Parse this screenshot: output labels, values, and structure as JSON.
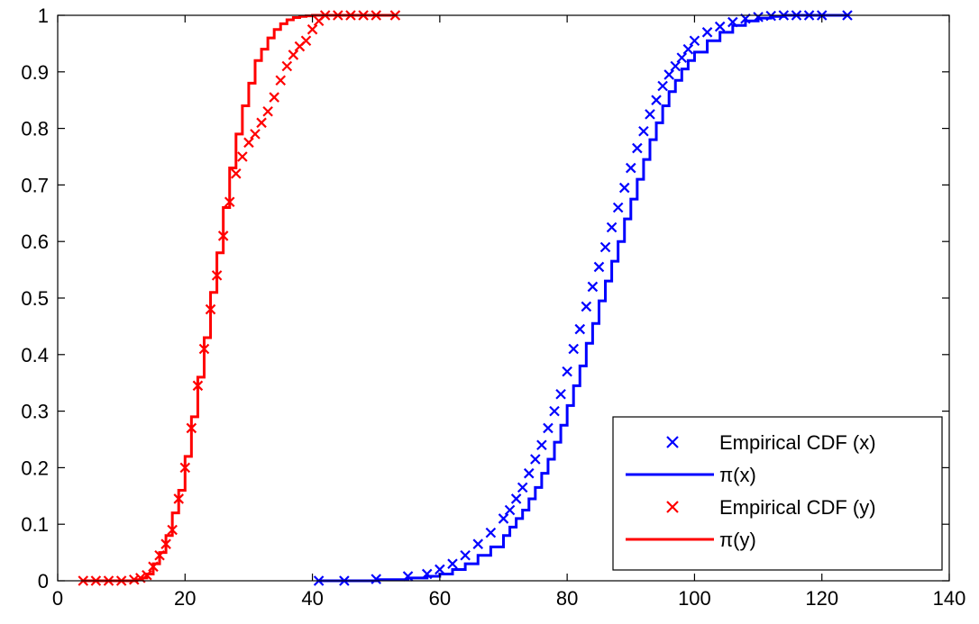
{
  "chart_data": {
    "type": "line",
    "xlim": [
      0,
      140
    ],
    "ylim": [
      0,
      1
    ],
    "x_ticks": [
      "0",
      "20",
      "40",
      "60",
      "80",
      "100",
      "120",
      "140"
    ],
    "y_ticks": [
      "0",
      "0.1",
      "0.2",
      "0.3",
      "0.4",
      "0.5",
      "0.6",
      "0.7",
      "0.8",
      "0.9",
      "1"
    ],
    "grid": false,
    "legend_position": "bottom-right",
    "series": [
      {
        "name": "Empirical CDF (x)",
        "kind": "markers",
        "marker": "x",
        "color": "#0000ff",
        "x": [
          41,
          45,
          50,
          55,
          58,
          60,
          62,
          64,
          66,
          68,
          70,
          71,
          72,
          73,
          74,
          75,
          76,
          77,
          78,
          79,
          80,
          81,
          82,
          83,
          84,
          85,
          86,
          87,
          88,
          89,
          90,
          91,
          92,
          93,
          94,
          95,
          96,
          97,
          98,
          99,
          100,
          102,
          104,
          106,
          108,
          110,
          112,
          114,
          116,
          118,
          120,
          124
        ],
        "y": [
          0,
          0,
          0.003,
          0.008,
          0.012,
          0.02,
          0.03,
          0.045,
          0.065,
          0.085,
          0.11,
          0.125,
          0.145,
          0.165,
          0.19,
          0.215,
          0.24,
          0.27,
          0.3,
          0.33,
          0.37,
          0.41,
          0.445,
          0.485,
          0.52,
          0.555,
          0.59,
          0.625,
          0.66,
          0.695,
          0.73,
          0.765,
          0.795,
          0.825,
          0.85,
          0.875,
          0.895,
          0.91,
          0.925,
          0.94,
          0.955,
          0.97,
          0.98,
          0.988,
          0.994,
          0.997,
          0.999,
          1,
          1,
          1,
          1,
          1
        ]
      },
      {
        "name": "π(x)",
        "kind": "step",
        "color": "#0000ff",
        "x": [
          41,
          50,
          55,
          58,
          60,
          62,
          64,
          66,
          68,
          70,
          71,
          72,
          73,
          74,
          75,
          76,
          77,
          78,
          79,
          80,
          81,
          82,
          83,
          84,
          85,
          86,
          87,
          88,
          89,
          90,
          91,
          92,
          93,
          94,
          95,
          96,
          97,
          98,
          99,
          100,
          102,
          104,
          106,
          108,
          110,
          112,
          114,
          124
        ],
        "y": [
          0,
          0.002,
          0.005,
          0.008,
          0.012,
          0.02,
          0.03,
          0.045,
          0.06,
          0.08,
          0.095,
          0.11,
          0.125,
          0.145,
          0.165,
          0.19,
          0.215,
          0.245,
          0.275,
          0.31,
          0.345,
          0.38,
          0.42,
          0.455,
          0.495,
          0.53,
          0.565,
          0.6,
          0.64,
          0.675,
          0.71,
          0.745,
          0.78,
          0.81,
          0.84,
          0.865,
          0.885,
          0.905,
          0.92,
          0.935,
          0.955,
          0.97,
          0.982,
          0.99,
          0.995,
          0.998,
          1,
          1
        ]
      },
      {
        "name": "Empirical CDF (y)",
        "kind": "markers",
        "marker": "x",
        "color": "#ff0000",
        "x": [
          4,
          6,
          8,
          10,
          12,
          13,
          14,
          15,
          16,
          17,
          18,
          19,
          20,
          21,
          22,
          23,
          24,
          25,
          26,
          27,
          28,
          29,
          30,
          31,
          32,
          33,
          34,
          35,
          36,
          37,
          38,
          39,
          40,
          41,
          42,
          44,
          46,
          48,
          50,
          53
        ],
        "y": [
          0,
          0,
          0,
          0,
          0.002,
          0.005,
          0.01,
          0.025,
          0.045,
          0.065,
          0.09,
          0.145,
          0.2,
          0.27,
          0.345,
          0.41,
          0.48,
          0.54,
          0.61,
          0.67,
          0.72,
          0.75,
          0.775,
          0.79,
          0.81,
          0.83,
          0.855,
          0.885,
          0.91,
          0.93,
          0.945,
          0.955,
          0.975,
          0.99,
          1,
          1,
          1,
          1,
          1,
          1
        ]
      },
      {
        "name": "π(y)",
        "kind": "step",
        "color": "#ff0000",
        "x": [
          4,
          12,
          13,
          14,
          15,
          16,
          17,
          18,
          19,
          20,
          21,
          22,
          23,
          24,
          25,
          26,
          27,
          28,
          29,
          30,
          31,
          32,
          33,
          34,
          35,
          36,
          37,
          38,
          39,
          40,
          41,
          42,
          53
        ],
        "y": [
          0,
          0.002,
          0.005,
          0.012,
          0.03,
          0.05,
          0.08,
          0.12,
          0.16,
          0.22,
          0.29,
          0.36,
          0.43,
          0.51,
          0.58,
          0.66,
          0.73,
          0.79,
          0.84,
          0.88,
          0.92,
          0.94,
          0.96,
          0.975,
          0.985,
          0.992,
          0.996,
          0.998,
          0.999,
          1,
          1,
          1,
          1
        ]
      }
    ]
  }
}
